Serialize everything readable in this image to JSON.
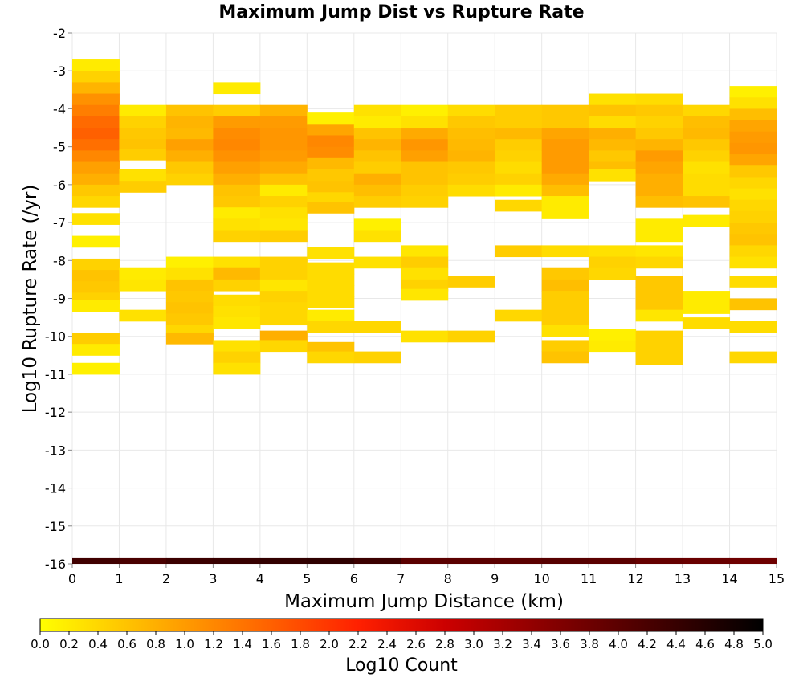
{
  "chart_data": {
    "type": "heatmap",
    "title": "Maximum Jump Dist vs Rupture Rate",
    "xlabel": "Maximum Jump Distance (km)",
    "ylabel": "Log10 Rupture Rate (/yr)",
    "colorbar_label": "Log10 Count",
    "xlim": [
      0,
      15
    ],
    "ylim": [
      -16,
      -2
    ],
    "x_ticks": [
      "0",
      "1",
      "2",
      "3",
      "4",
      "5",
      "6",
      "7",
      "8",
      "9",
      "10",
      "11",
      "12",
      "13",
      "14",
      "15"
    ],
    "y_ticks": [
      "-2",
      "-3",
      "-4",
      "-5",
      "-6",
      "-7",
      "-8",
      "-9",
      "-10",
      "-11",
      "-12",
      "-13",
      "-14",
      "-15",
      "-16"
    ],
    "colorbar_ticks": [
      "0.0",
      "0.2",
      "0.4",
      "0.6",
      "0.8",
      "1.0",
      "1.2",
      "1.4",
      "1.6",
      "1.8",
      "2.0",
      "2.2",
      "2.4",
      "2.6",
      "2.8",
      "3.0",
      "3.2",
      "3.4",
      "3.6",
      "3.8",
      "4.0",
      "4.2",
      "4.4",
      "4.6",
      "4.8",
      "5.0"
    ],
    "colorbar_range": [
      0,
      5
    ],
    "colormap": [
      "#ffff00",
      "#ffa500",
      "#ff6000",
      "#ff2000",
      "#cc0000",
      "#800000",
      "#400000",
      "#000000"
    ],
    "grid": true,
    "x_bin_width": 1,
    "y_bin_height": 0.3,
    "cells": [
      [
        0,
        -2.85,
        0.2
      ],
      [
        0,
        -3.15,
        0.45
      ],
      [
        0,
        -3.45,
        0.75
      ],
      [
        0,
        -3.75,
        1.1
      ],
      [
        0,
        -4.05,
        1.3
      ],
      [
        0,
        -4.35,
        1.5
      ],
      [
        0,
        -4.65,
        1.6
      ],
      [
        0,
        -4.95,
        1.45
      ],
      [
        0,
        -5.25,
        1.2
      ],
      [
        0,
        -5.55,
        0.95
      ],
      [
        0,
        -5.85,
        0.8
      ],
      [
        0,
        -6.15,
        0.55
      ],
      [
        0,
        -6.45,
        0.4
      ],
      [
        0,
        -6.9,
        0.3
      ],
      [
        0,
        -7.5,
        0.15
      ],
      [
        0,
        -8.1,
        0.45
      ],
      [
        0,
        -8.4,
        0.6
      ],
      [
        0,
        -8.7,
        0.55
      ],
      [
        0,
        -9.0,
        0.45
      ],
      [
        0,
        -9.2,
        0.2
      ],
      [
        0,
        -10.05,
        0.5
      ],
      [
        0,
        -10.35,
        0.2
      ],
      [
        0,
        -10.85,
        0.15
      ],
      [
        1,
        -4.05,
        0.2
      ],
      [
        1,
        -4.35,
        0.45
      ],
      [
        1,
        -4.65,
        0.55
      ],
      [
        1,
        -4.95,
        0.6
      ],
      [
        1,
        -5.2,
        0.5
      ],
      [
        1,
        -5.75,
        0.3
      ],
      [
        1,
        -6.05,
        0.5
      ],
      [
        1,
        -8.35,
        0.2
      ],
      [
        1,
        -8.65,
        0.25
      ],
      [
        1,
        -9.45,
        0.3
      ],
      [
        2,
        -4.05,
        0.6
      ],
      [
        2,
        -4.35,
        0.75
      ],
      [
        2,
        -4.65,
        0.7
      ],
      [
        2,
        -4.95,
        0.95
      ],
      [
        2,
        -5.25,
        0.8
      ],
      [
        2,
        -5.55,
        0.55
      ],
      [
        2,
        -5.85,
        0.45
      ],
      [
        2,
        -8.05,
        0.15
      ],
      [
        2,
        -8.35,
        0.3
      ],
      [
        2,
        -8.65,
        0.6
      ],
      [
        2,
        -8.95,
        0.55
      ],
      [
        2,
        -9.25,
        0.6
      ],
      [
        2,
        -9.55,
        0.55
      ],
      [
        2,
        -9.85,
        0.4
      ],
      [
        2,
        -10.05,
        0.7
      ],
      [
        3,
        -3.45,
        0.2
      ],
      [
        3,
        -4.05,
        0.5
      ],
      [
        3,
        -4.35,
        1.0
      ],
      [
        3,
        -4.65,
        1.15
      ],
      [
        3,
        -4.95,
        1.2
      ],
      [
        3,
        -5.25,
        1.1
      ],
      [
        3,
        -5.55,
        0.95
      ],
      [
        3,
        -5.85,
        0.8
      ],
      [
        3,
        -6.15,
        0.6
      ],
      [
        3,
        -6.45,
        0.55
      ],
      [
        3,
        -6.75,
        0.2
      ],
      [
        3,
        -7.05,
        0.3
      ],
      [
        3,
        -7.35,
        0.45
      ],
      [
        3,
        -8.05,
        0.3
      ],
      [
        3,
        -8.35,
        0.7
      ],
      [
        3,
        -8.65,
        0.45
      ],
      [
        3,
        -9.05,
        0.35
      ],
      [
        3,
        -9.35,
        0.3
      ],
      [
        3,
        -9.65,
        0.25
      ],
      [
        3,
        -10.25,
        0.3
      ],
      [
        3,
        -10.55,
        0.45
      ],
      [
        3,
        -10.85,
        0.3
      ],
      [
        4,
        -4.05,
        0.75
      ],
      [
        4,
        -4.35,
        1.0
      ],
      [
        4,
        -4.65,
        1.05
      ],
      [
        4,
        -4.95,
        1.05
      ],
      [
        4,
        -5.25,
        1.0
      ],
      [
        4,
        -5.55,
        0.85
      ],
      [
        4,
        -5.85,
        0.6
      ],
      [
        4,
        -6.15,
        0.2
      ],
      [
        4,
        -6.45,
        0.45
      ],
      [
        4,
        -6.75,
        0.3
      ],
      [
        4,
        -7.05,
        0.25
      ],
      [
        4,
        -7.35,
        0.5
      ],
      [
        4,
        -8.05,
        0.45
      ],
      [
        4,
        -8.35,
        0.45
      ],
      [
        4,
        -8.65,
        0.25
      ],
      [
        4,
        -8.95,
        0.45
      ],
      [
        4,
        -9.25,
        0.4
      ],
      [
        4,
        -9.55,
        0.4
      ],
      [
        4,
        -10.0,
        0.8
      ],
      [
        4,
        -10.25,
        0.4
      ],
      [
        5,
        -4.25,
        0.15
      ],
      [
        5,
        -4.55,
        0.9
      ],
      [
        5,
        -4.85,
        1.2
      ],
      [
        5,
        -5.15,
        1.15
      ],
      [
        5,
        -5.45,
        0.7
      ],
      [
        5,
        -5.75,
        0.55
      ],
      [
        5,
        -6.05,
        0.6
      ],
      [
        5,
        -6.35,
        0.4
      ],
      [
        5,
        -6.6,
        0.6
      ],
      [
        5,
        -7.8,
        0.3
      ],
      [
        5,
        -8.2,
        0.35
      ],
      [
        5,
        -8.5,
        0.35
      ],
      [
        5,
        -8.8,
        0.35
      ],
      [
        5,
        -9.1,
        0.35
      ],
      [
        5,
        -9.45,
        0.2
      ],
      [
        5,
        -9.75,
        0.4
      ],
      [
        5,
        -10.3,
        0.6
      ],
      [
        5,
        -10.55,
        0.4
      ],
      [
        6,
        -4.05,
        0.3
      ],
      [
        6,
        -4.35,
        0.2
      ],
      [
        6,
        -4.65,
        0.6
      ],
      [
        6,
        -4.95,
        0.75
      ],
      [
        6,
        -5.25,
        0.6
      ],
      [
        6,
        -5.55,
        0.5
      ],
      [
        6,
        -5.85,
        0.8
      ],
      [
        6,
        -6.15,
        0.65
      ],
      [
        6,
        -6.45,
        0.5
      ],
      [
        6,
        -7.05,
        0.15
      ],
      [
        6,
        -7.35,
        0.3
      ],
      [
        6,
        -8.05,
        0.3
      ],
      [
        6,
        -9.75,
        0.4
      ],
      [
        6,
        -10.55,
        0.45
      ],
      [
        7,
        -4.05,
        0.15
      ],
      [
        7,
        -4.35,
        0.3
      ],
      [
        7,
        -4.65,
        0.85
      ],
      [
        7,
        -4.95,
        1.05
      ],
      [
        7,
        -5.25,
        0.95
      ],
      [
        7,
        -5.55,
        0.6
      ],
      [
        7,
        -5.85,
        0.6
      ],
      [
        7,
        -6.15,
        0.5
      ],
      [
        7,
        -6.45,
        0.45
      ],
      [
        7,
        -7.75,
        0.25
      ],
      [
        7,
        -8.05,
        0.5
      ],
      [
        7,
        -8.35,
        0.3
      ],
      [
        7,
        -8.65,
        0.45
      ],
      [
        7,
        -8.9,
        0.25
      ],
      [
        7,
        -10.0,
        0.3
      ],
      [
        8,
        -4.05,
        0.35
      ],
      [
        8,
        -4.35,
        0.55
      ],
      [
        8,
        -4.65,
        0.65
      ],
      [
        8,
        -4.95,
        0.7
      ],
      [
        8,
        -5.25,
        0.75
      ],
      [
        8,
        -5.55,
        0.55
      ],
      [
        8,
        -5.85,
        0.5
      ],
      [
        8,
        -6.15,
        0.35
      ],
      [
        8,
        -8.55,
        0.5
      ],
      [
        8,
        -10.0,
        0.45
      ],
      [
        9,
        -4.05,
        0.5
      ],
      [
        9,
        -4.35,
        0.5
      ],
      [
        9,
        -4.65,
        0.7
      ],
      [
        9,
        -4.95,
        0.5
      ],
      [
        9,
        -5.25,
        0.45
      ],
      [
        9,
        -5.55,
        0.35
      ],
      [
        9,
        -5.85,
        0.45
      ],
      [
        9,
        -6.15,
        0.2
      ],
      [
        9,
        -6.55,
        0.4
      ],
      [
        9,
        -7.75,
        0.5
      ],
      [
        9,
        -9.45,
        0.4
      ],
      [
        10,
        -4.05,
        0.55
      ],
      [
        10,
        -4.35,
        0.55
      ],
      [
        10,
        -4.65,
        0.9
      ],
      [
        10,
        -4.95,
        1.0
      ],
      [
        10,
        -5.25,
        1.0
      ],
      [
        10,
        -5.55,
        1.0
      ],
      [
        10,
        -5.85,
        0.85
      ],
      [
        10,
        -6.15,
        0.65
      ],
      [
        10,
        -6.45,
        0.2
      ],
      [
        10,
        -6.75,
        0.2
      ],
      [
        10,
        -7.75,
        0.35
      ],
      [
        10,
        -8.35,
        0.55
      ],
      [
        10,
        -8.65,
        0.65
      ],
      [
        10,
        -8.95,
        0.5
      ],
      [
        10,
        -9.25,
        0.5
      ],
      [
        10,
        -9.55,
        0.5
      ],
      [
        10,
        -9.85,
        0.3
      ],
      [
        10,
        -10.25,
        0.5
      ],
      [
        10,
        -10.55,
        0.6
      ],
      [
        11,
        -3.75,
        0.3
      ],
      [
        11,
        -4.05,
        0.6
      ],
      [
        11,
        -4.35,
        0.35
      ],
      [
        11,
        -4.65,
        0.8
      ],
      [
        11,
        -4.95,
        0.7
      ],
      [
        11,
        -5.25,
        0.55
      ],
      [
        11,
        -5.55,
        0.65
      ],
      [
        11,
        -5.75,
        0.3
      ],
      [
        11,
        -7.75,
        0.3
      ],
      [
        11,
        -8.05,
        0.45
      ],
      [
        11,
        -8.35,
        0.4
      ],
      [
        11,
        -9.95,
        0.15
      ],
      [
        11,
        -10.25,
        0.2
      ],
      [
        12,
        -3.75,
        0.35
      ],
      [
        12,
        -4.05,
        0.55
      ],
      [
        12,
        -4.35,
        0.45
      ],
      [
        12,
        -4.65,
        0.55
      ],
      [
        12,
        -4.95,
        0.75
      ],
      [
        12,
        -5.25,
        1.0
      ],
      [
        12,
        -5.55,
        0.9
      ],
      [
        12,
        -5.85,
        0.8
      ],
      [
        12,
        -6.15,
        0.8
      ],
      [
        12,
        -6.45,
        0.65
      ],
      [
        12,
        -7.05,
        0.2
      ],
      [
        12,
        -7.35,
        0.2
      ],
      [
        12,
        -7.75,
        0.25
      ],
      [
        12,
        -8.05,
        0.4
      ],
      [
        12,
        -8.55,
        0.55
      ],
      [
        12,
        -8.85,
        0.55
      ],
      [
        12,
        -9.15,
        0.55
      ],
      [
        12,
        -9.45,
        0.25
      ],
      [
        12,
        -10.0,
        0.45
      ],
      [
        12,
        -10.3,
        0.45
      ],
      [
        12,
        -10.6,
        0.45
      ],
      [
        13,
        -4.05,
        0.4
      ],
      [
        13,
        -4.35,
        0.65
      ],
      [
        13,
        -4.65,
        0.7
      ],
      [
        13,
        -4.95,
        0.55
      ],
      [
        13,
        -5.25,
        0.45
      ],
      [
        13,
        -5.55,
        0.3
      ],
      [
        13,
        -5.85,
        0.35
      ],
      [
        13,
        -6.15,
        0.35
      ],
      [
        13,
        -6.45,
        0.6
      ],
      [
        13,
        -6.95,
        0.2
      ],
      [
        13,
        -8.95,
        0.2
      ],
      [
        13,
        -9.25,
        0.2
      ],
      [
        13,
        -9.65,
        0.35
      ],
      [
        14,
        -3.55,
        0.15
      ],
      [
        14,
        -3.85,
        0.3
      ],
      [
        14,
        -4.15,
        0.65
      ],
      [
        14,
        -4.45,
        0.9
      ],
      [
        14,
        -4.75,
        1.0
      ],
      [
        14,
        -5.05,
        1.05
      ],
      [
        14,
        -5.35,
        0.9
      ],
      [
        14,
        -5.65,
        0.55
      ],
      [
        14,
        -5.95,
        0.4
      ],
      [
        14,
        -6.25,
        0.3
      ],
      [
        14,
        -6.55,
        0.4
      ],
      [
        14,
        -6.85,
        0.45
      ],
      [
        14,
        -7.15,
        0.55
      ],
      [
        14,
        -7.45,
        0.6
      ],
      [
        14,
        -7.75,
        0.4
      ],
      [
        14,
        -8.05,
        0.3
      ],
      [
        14,
        -8.55,
        0.35
      ],
      [
        14,
        -9.15,
        0.6
      ],
      [
        14,
        -9.75,
        0.35
      ],
      [
        14,
        -10.55,
        0.4
      ]
    ],
    "bottom_row": {
      "y": -15.95,
      "values": [
        4.3,
        4.2,
        4.35,
        4.4,
        4.45,
        4.5,
        4.35,
        4.0,
        4.0,
        4.0,
        4.05,
        4.0,
        3.9,
        3.85,
        3.8
      ]
    }
  }
}
